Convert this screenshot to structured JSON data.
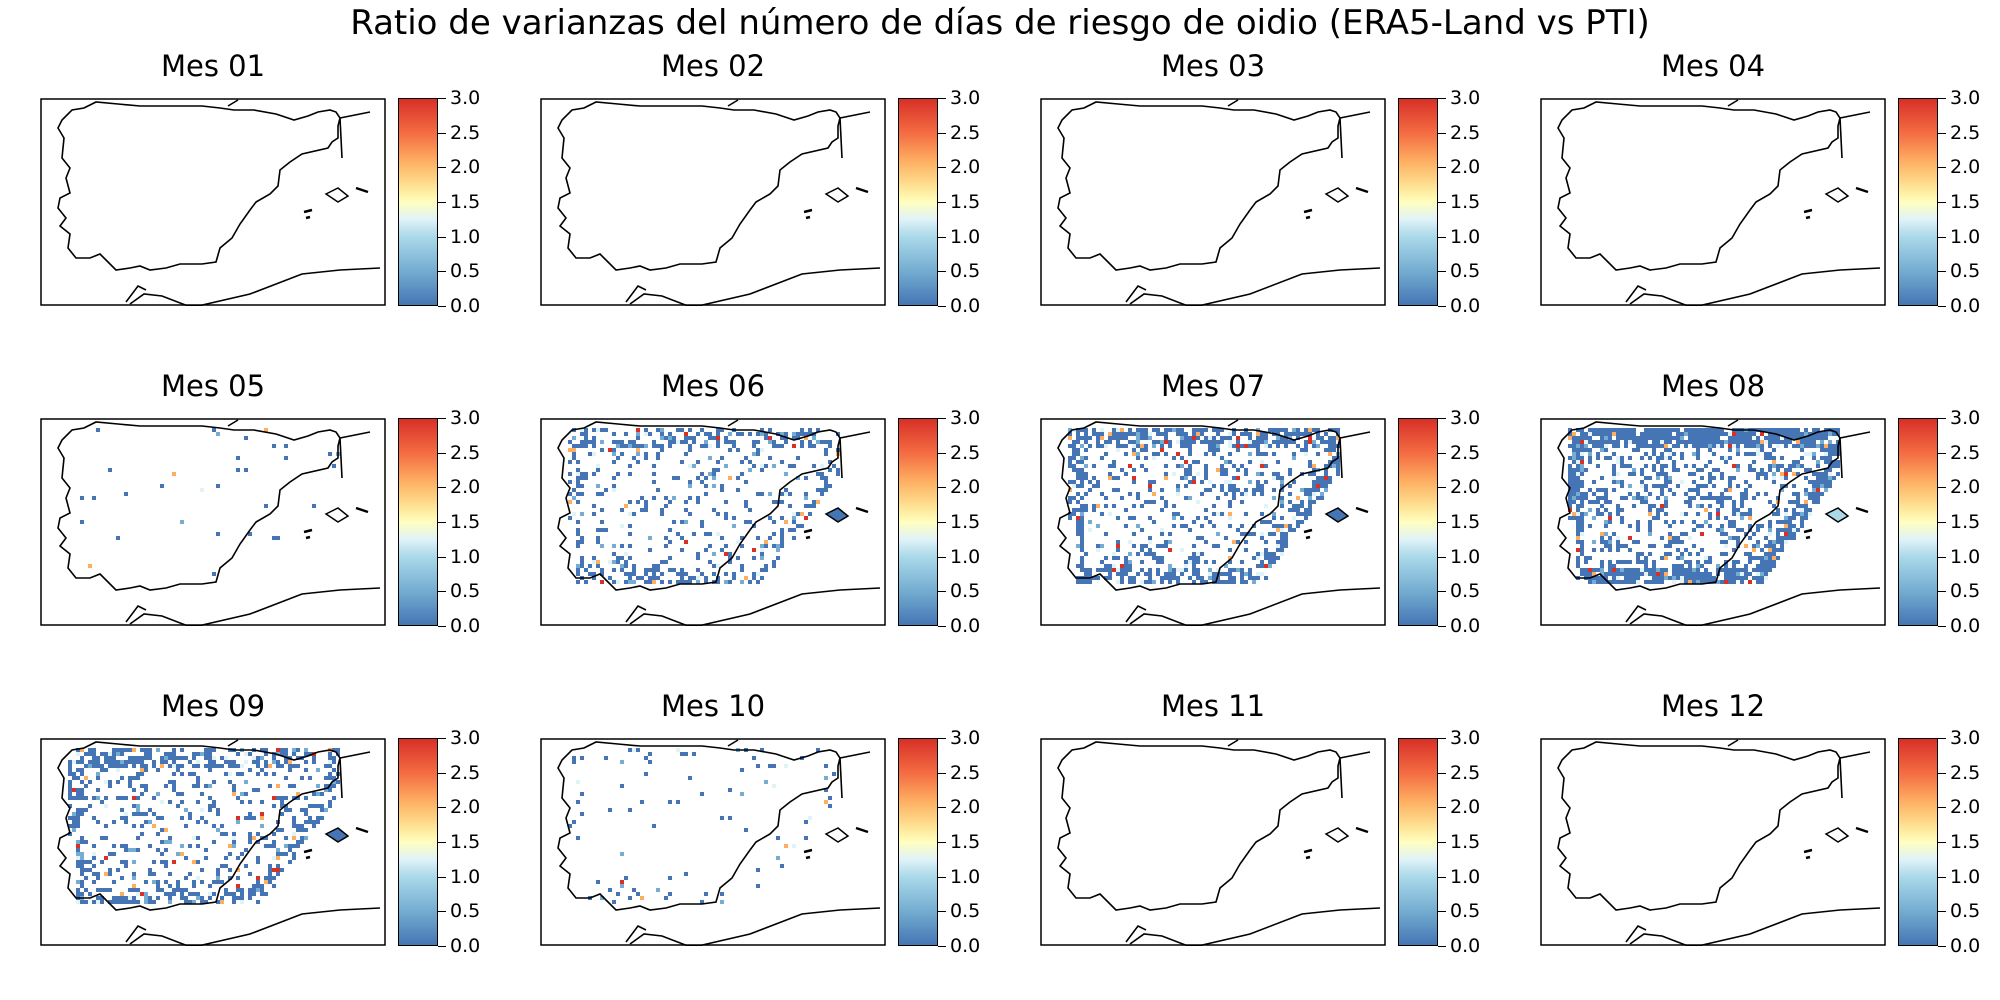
{
  "figure_title": "Ratio de varianzas del número de días de riesgo de oidio (ERA5-Land vs PTI)",
  "colorbar": {
    "ticks": [
      "3.0",
      "2.5",
      "2.0",
      "1.5",
      "1.0",
      "0.5",
      "0.0"
    ],
    "range": [
      0,
      3
    ],
    "colormap": "RdYlBu_r",
    "colors": [
      "#4575b4",
      "#74add1",
      "#abd9e9",
      "#e0f3f8",
      "#ffffbf",
      "#fee090",
      "#fdae61",
      "#f46d43",
      "#d73027"
    ]
  },
  "panels": [
    {
      "title": "Mes 01",
      "coverage": 0.0
    },
    {
      "title": "Mes 02",
      "coverage": 0.0
    },
    {
      "title": "Mes 03",
      "coverage": 0.0
    },
    {
      "title": "Mes 04",
      "coverage": 0.0
    },
    {
      "title": "Mes 05",
      "coverage": 0.02
    },
    {
      "title": "Mes 06",
      "coverage": 0.3
    },
    {
      "title": "Mes 07",
      "coverage": 0.5
    },
    {
      "title": "Mes 08",
      "coverage": 0.65
    },
    {
      "title": "Mes 09",
      "coverage": 0.4
    },
    {
      "title": "Mes 10",
      "coverage": 0.05
    },
    {
      "title": "Mes 11",
      "coverage": 0.0
    },
    {
      "title": "Mes 12",
      "coverage": 0.0
    }
  ]
}
